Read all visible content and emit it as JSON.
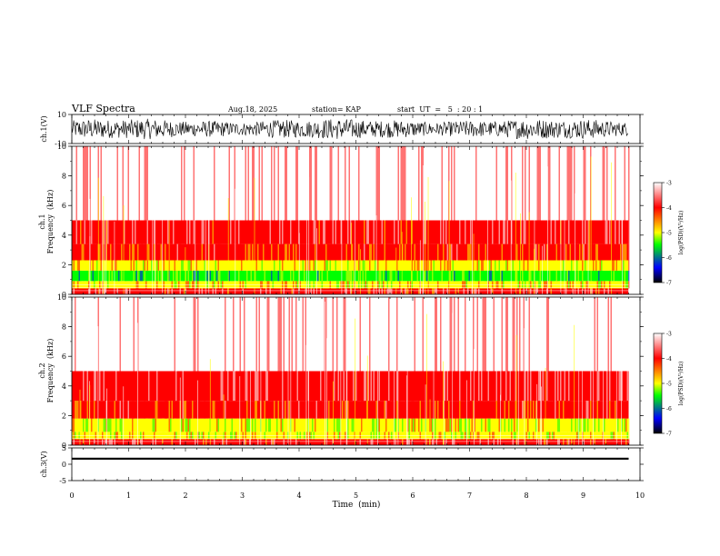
{
  "header": {
    "title": "VLF Spectra",
    "date": "Aug.18, 2025",
    "station": "station= KAP",
    "start": "start  UT  =   5  : 20 : 1"
  },
  "chart_data": [
    {
      "type": "line",
      "id": "ch1-waveform",
      "ylabel": "ch.1(V)",
      "ylim": [
        -10,
        10
      ],
      "yticks": [
        "10",
        "-10"
      ],
      "xlim": [
        0,
        10
      ],
      "data_end_min": 9.8,
      "series": [
        {
          "name": "ch.1",
          "level": 0,
          "amplitude": 8
        }
      ]
    },
    {
      "type": "heatmap",
      "id": "ch1-spectrogram",
      "ylabel_line1": "ch.1",
      "ylabel_line2": "Frequency  (kHz)",
      "ylim": [
        0,
        10
      ],
      "yticks": [
        "0",
        "2",
        "4",
        "6",
        "8",
        "10"
      ],
      "xlim": [
        0,
        10
      ],
      "data_end_min": 9.8,
      "bands": [
        {
          "from": 0.0,
          "to": 0.4,
          "level": -3.6
        },
        {
          "from": 0.4,
          "to": 0.9,
          "level": -4.4
        },
        {
          "from": 0.9,
          "to": 1.6,
          "level": -5.0
        },
        {
          "from": 1.6,
          "to": 2.3,
          "level": -4.4
        },
        {
          "from": 2.3,
          "to": 3.4,
          "level": -4.0
        },
        {
          "from": 3.4,
          "to": 5.0,
          "level": -3.5
        },
        {
          "from": 5.0,
          "to": 10.0,
          "level": -3.2
        }
      ],
      "colorbar": {
        "label": "log(PSD)(V²/Hz)",
        "min": -7,
        "max": -3,
        "ticks": [
          "-3",
          "-4",
          "-5",
          "-6",
          "-7"
        ]
      }
    },
    {
      "type": "heatmap",
      "id": "ch2-spectrogram",
      "ylabel_line1": "ch.2",
      "ylabel_line2": "Frequency  (kHz)",
      "ylim": [
        0,
        10
      ],
      "yticks": [
        "0",
        "2",
        "4",
        "6",
        "8",
        "10"
      ],
      "xlim": [
        0,
        10
      ],
      "data_end_min": 9.8,
      "bands": [
        {
          "from": 0.0,
          "to": 0.4,
          "level": -3.6
        },
        {
          "from": 0.4,
          "to": 0.9,
          "level": -4.4
        },
        {
          "from": 0.9,
          "to": 1.8,
          "level": -4.7
        },
        {
          "from": 1.8,
          "to": 3.0,
          "level": -3.9
        },
        {
          "from": 3.0,
          "to": 5.0,
          "level": -3.3
        },
        {
          "from": 5.0,
          "to": 10.0,
          "level": -3.05
        }
      ],
      "colorbar": {
        "label": "log(PSD)(V²/Hz)",
        "min": -7,
        "max": -3,
        "ticks": [
          "-3",
          "-4",
          "-5",
          "-6",
          "-7"
        ]
      }
    },
    {
      "type": "line",
      "id": "ch3-waveform",
      "ylabel": "ch.3(V)",
      "ylim": [
        -5,
        5
      ],
      "yticks": [
        "5",
        "0",
        "-5"
      ],
      "xlim": [
        0,
        10
      ],
      "data_end_min": 9.8,
      "series": [
        {
          "name": "ch.3",
          "level": 1.7,
          "amplitude": 0.3
        }
      ]
    }
  ],
  "x_axis": {
    "label": "Time  (min)",
    "ticks": [
      "0",
      "1",
      "2",
      "3",
      "4",
      "5",
      "6",
      "7",
      "8",
      "9",
      "10"
    ]
  },
  "colors": {
    "red": "#ff0000",
    "white": "#ffffff",
    "yellow": "#ffff00",
    "green": "#00ff00",
    "blue": "#0000ff",
    "black": "#000000"
  }
}
